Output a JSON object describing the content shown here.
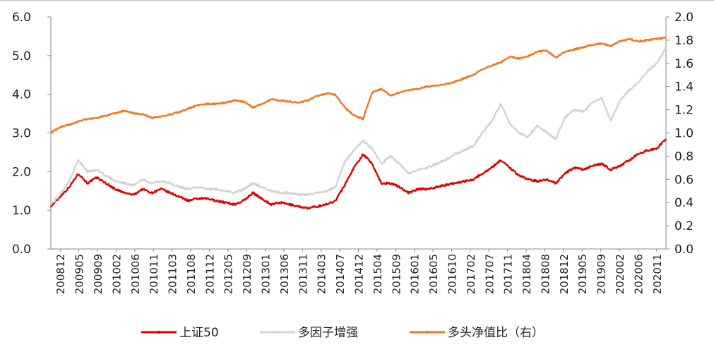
{
  "chart_data": {
    "type": "line",
    "title": "",
    "xlabel": "",
    "ylabel": "",
    "y_left": {
      "lim": [
        0.0,
        6.0
      ],
      "ticks": [
        "0.0",
        "1.0",
        "2.0",
        "3.0",
        "4.0",
        "5.0",
        "6.0"
      ]
    },
    "y_right": {
      "lim": [
        0.0,
        2.0
      ],
      "ticks": [
        "0.0",
        "0.2",
        "0.4",
        "0.6",
        "0.8",
        "1.0",
        "1.2",
        "1.4",
        "1.6",
        "1.8",
        "2.0"
      ]
    },
    "x_tick_labels": [
      "200812",
      "200905",
      "200909",
      "201002",
      "201006",
      "201011",
      "201103",
      "201108",
      "201112",
      "201205",
      "201209",
      "201301",
      "201306",
      "201311",
      "201403",
      "201407",
      "201412",
      "201504",
      "201509",
      "201601",
      "201605",
      "201610",
      "201702",
      "201707",
      "201711",
      "201804",
      "201808",
      "201812",
      "201905",
      "201909",
      "202002",
      "202006",
      "202011"
    ],
    "legend": {
      "position": "bottom"
    },
    "grid": false,
    "x": [
      "200812",
      "200903",
      "200905",
      "200907",
      "200909",
      "200912",
      "201002",
      "201004",
      "201006",
      "201008",
      "201011",
      "201101",
      "201103",
      "201106",
      "201108",
      "201110",
      "201112",
      "201203",
      "201205",
      "201207",
      "201209",
      "201211",
      "201301",
      "201304",
      "201306",
      "201309",
      "201311",
      "201401",
      "201403",
      "201405",
      "201407",
      "201409",
      "201412",
      "201503",
      "201504",
      "201506",
      "201507",
      "201509",
      "201511",
      "201601",
      "201603",
      "201605",
      "201607",
      "201610",
      "201612",
      "201702",
      "201704",
      "201707",
      "201709",
      "201711",
      "201801",
      "201804",
      "201806",
      "201808",
      "201810",
      "201812",
      "201903",
      "201905",
      "201907",
      "201909",
      "201911",
      "202002",
      "202004",
      "202006",
      "202008",
      "202011",
      "202012",
      "202101"
    ],
    "series": [
      {
        "name": "上证50",
        "axis": "left",
        "color": "#e00000",
        "values": [
          1.1,
          1.35,
          1.6,
          1.95,
          1.7,
          1.85,
          1.7,
          1.55,
          1.45,
          1.4,
          1.55,
          1.45,
          1.55,
          1.45,
          1.35,
          1.25,
          1.3,
          1.3,
          1.25,
          1.2,
          1.15,
          1.25,
          1.45,
          1.3,
          1.15,
          1.2,
          1.15,
          1.1,
          1.05,
          1.1,
          1.15,
          1.25,
          1.65,
          2.1,
          2.45,
          2.2,
          1.7,
          1.7,
          1.6,
          1.45,
          1.55,
          1.55,
          1.6,
          1.65,
          1.7,
          1.75,
          1.8,
          1.95,
          2.1,
          2.3,
          2.1,
          1.9,
          1.8,
          1.75,
          1.8,
          1.7,
          1.95,
          2.1,
          2.05,
          2.15,
          2.2,
          2.05,
          2.15,
          2.3,
          2.45,
          2.55,
          2.6,
          2.85
        ]
      },
      {
        "name": "多因子增强",
        "axis": "left",
        "color": "#d3d3d3",
        "values": [
          1.15,
          1.4,
          1.75,
          2.3,
          2.0,
          2.05,
          1.9,
          1.75,
          1.7,
          1.65,
          1.8,
          1.7,
          1.75,
          1.7,
          1.6,
          1.55,
          1.6,
          1.55,
          1.55,
          1.5,
          1.45,
          1.55,
          1.7,
          1.6,
          1.5,
          1.45,
          1.45,
          1.4,
          1.4,
          1.45,
          1.5,
          1.6,
          2.25,
          2.55,
          2.8,
          2.6,
          2.2,
          2.4,
          2.2,
          1.95,
          2.05,
          2.1,
          2.2,
          2.3,
          2.45,
          2.55,
          2.65,
          3.0,
          3.3,
          3.75,
          3.25,
          3.0,
          2.9,
          3.2,
          3.0,
          2.85,
          3.4,
          3.6,
          3.55,
          3.8,
          3.9,
          3.3,
          3.85,
          4.1,
          4.3,
          4.6,
          4.8,
          5.2
        ]
      },
      {
        "name": "多头净值比（右）",
        "axis": "right",
        "color": "#f07820",
        "values": [
          1.0,
          1.05,
          1.07,
          1.1,
          1.12,
          1.13,
          1.15,
          1.17,
          1.19,
          1.17,
          1.16,
          1.13,
          1.14,
          1.16,
          1.18,
          1.21,
          1.24,
          1.25,
          1.25,
          1.26,
          1.28,
          1.27,
          1.22,
          1.25,
          1.29,
          1.28,
          1.27,
          1.26,
          1.28,
          1.32,
          1.34,
          1.33,
          1.22,
          1.15,
          1.12,
          1.35,
          1.38,
          1.32,
          1.35,
          1.37,
          1.38,
          1.4,
          1.41,
          1.42,
          1.44,
          1.47,
          1.5,
          1.55,
          1.58,
          1.61,
          1.66,
          1.64,
          1.66,
          1.7,
          1.71,
          1.65,
          1.7,
          1.72,
          1.74,
          1.76,
          1.77,
          1.75,
          1.79,
          1.81,
          1.79,
          1.8,
          1.81,
          1.82
        ]
      }
    ]
  }
}
